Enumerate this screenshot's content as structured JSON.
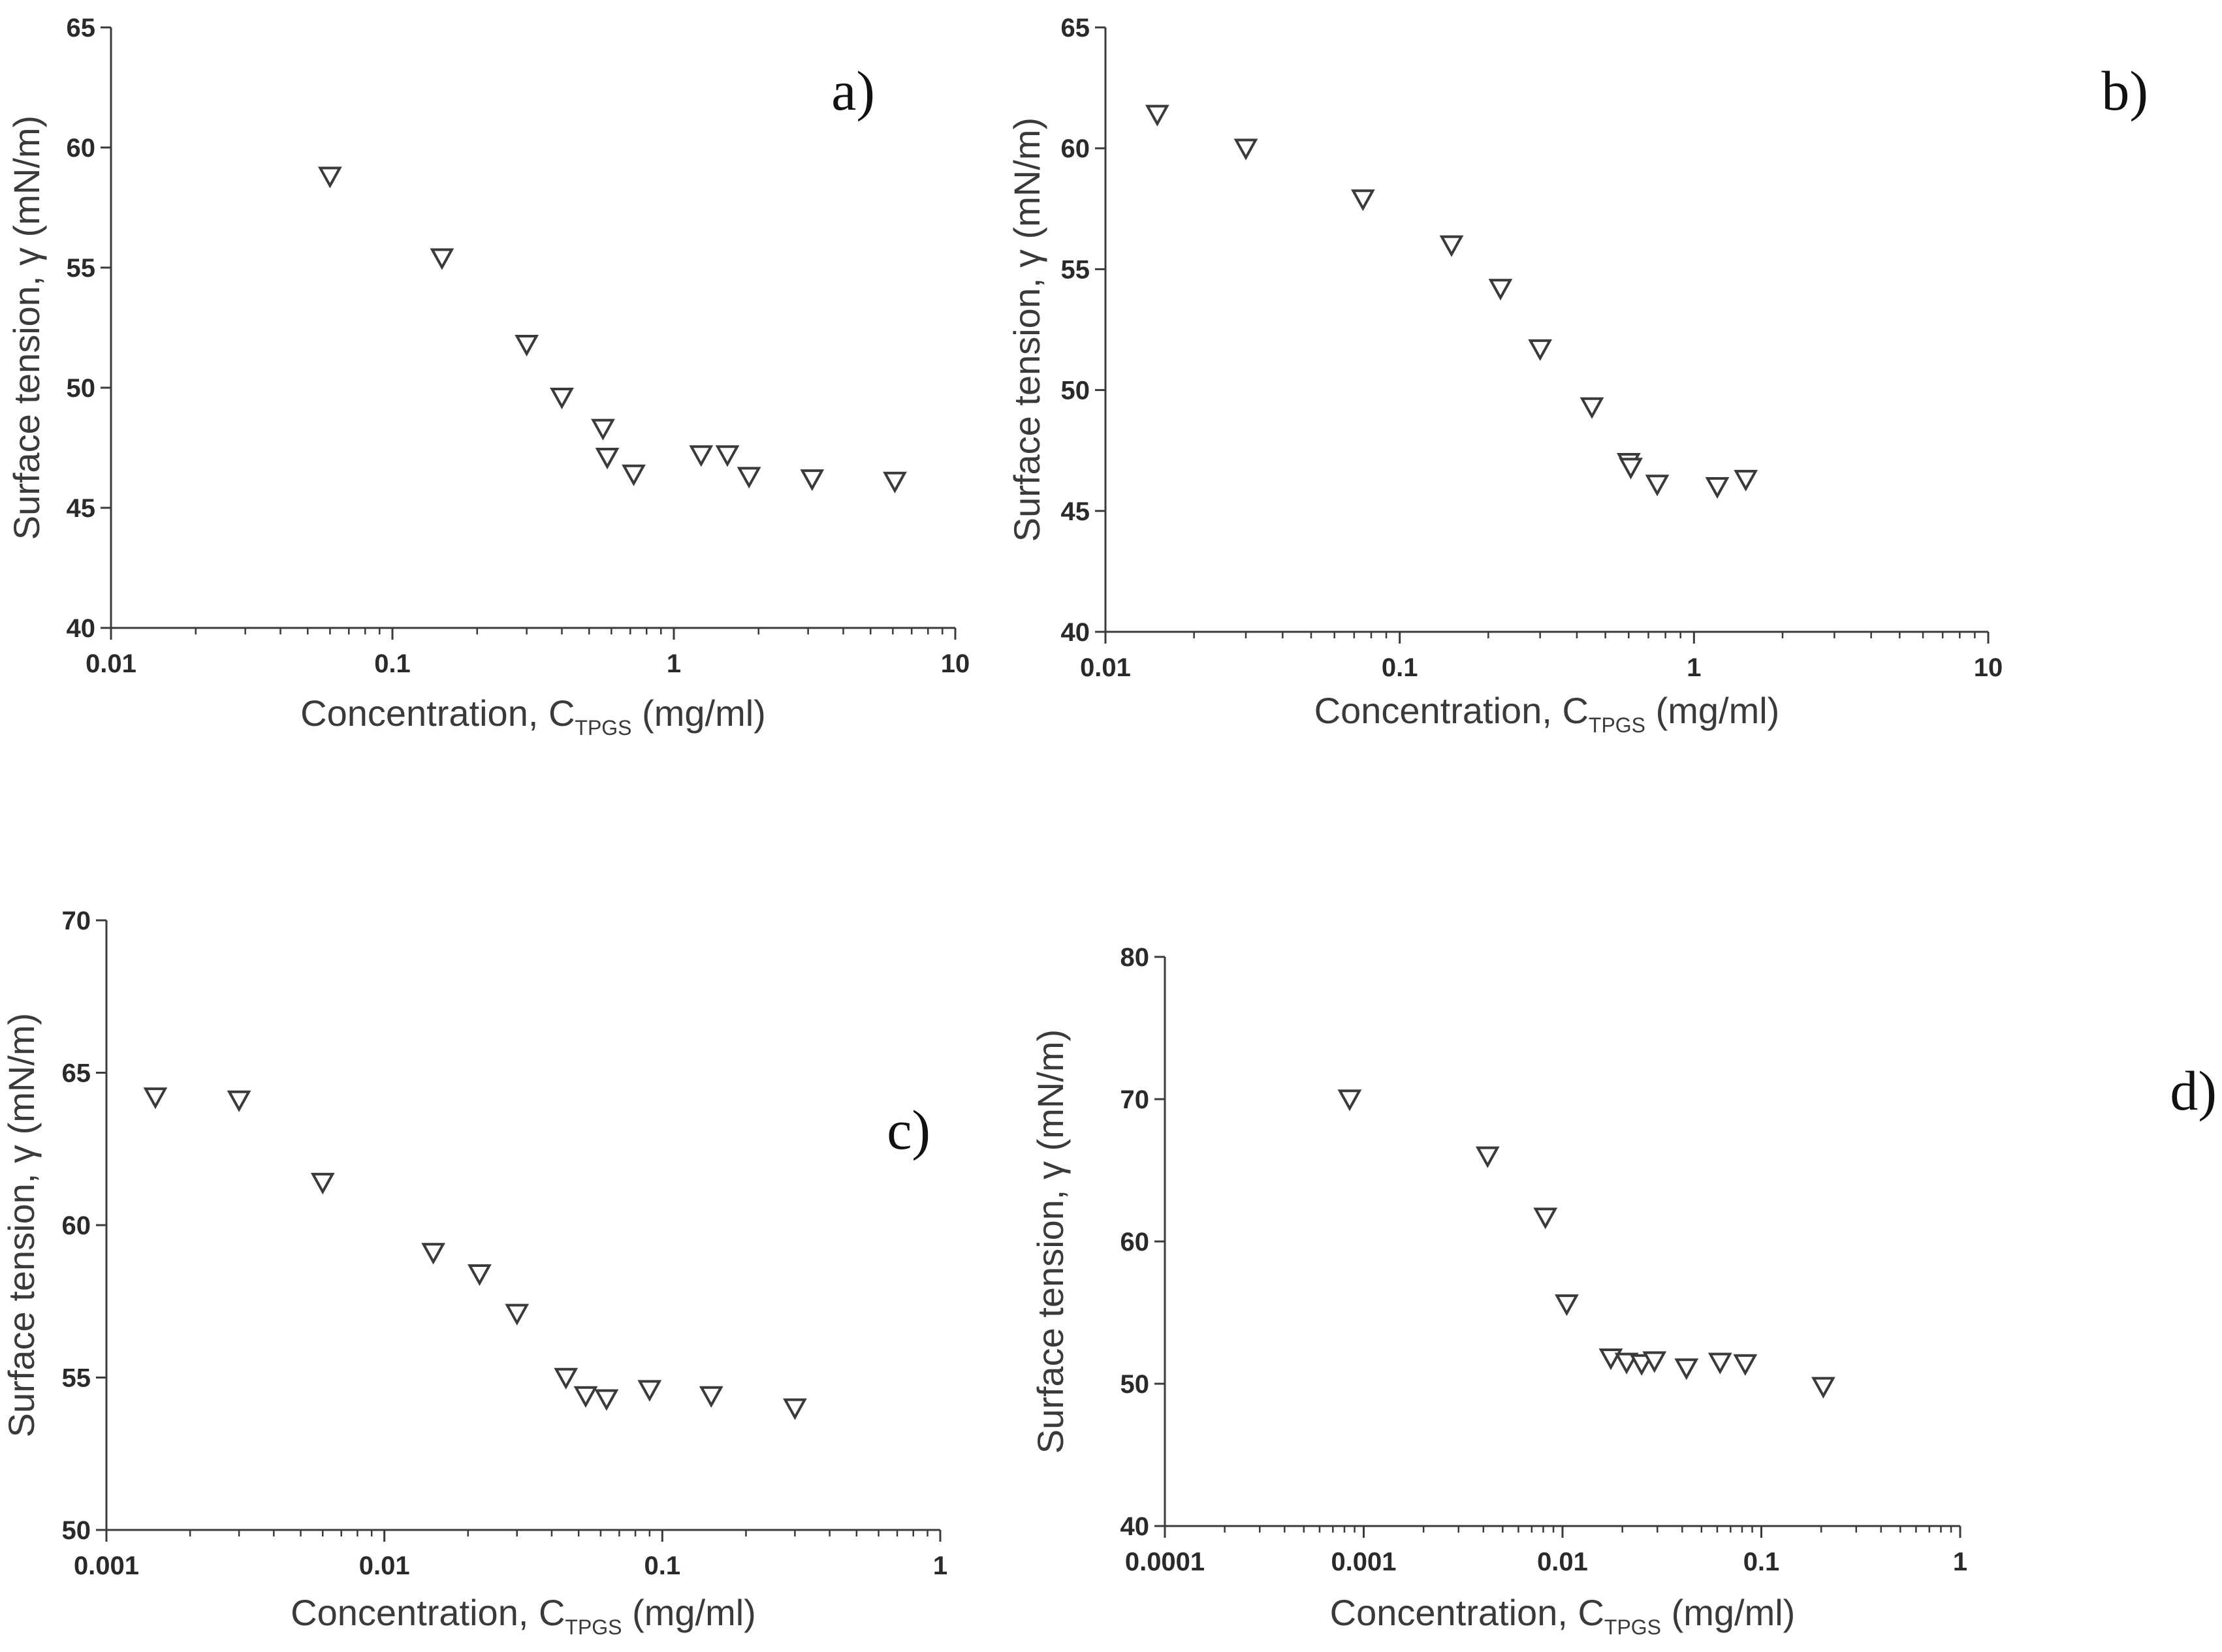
{
  "chart_data": [
    {
      "type": "scatter",
      "panel_label": "a)",
      "xlabel": "Concentration, C",
      "xlabel_sub": "TPGS",
      "xlabel_unit": " (mg/ml)",
      "ylabel": "Surface tension, γ (mN/m)",
      "x_scale": "log",
      "xlim": [
        0.01,
        10
      ],
      "ylim": [
        40,
        65
      ],
      "x_ticks": [
        0.01,
        0.1,
        1,
        10
      ],
      "x_tick_labels": [
        "0.01",
        "0.1",
        "1",
        "10"
      ],
      "y_ticks": [
        40,
        45,
        50,
        55,
        60,
        65
      ],
      "y_tick_labels": [
        "40",
        "45",
        "50",
        "55",
        "60",
        "65"
      ],
      "marker": "open-down-triangle",
      "x": [
        0.06,
        0.15,
        0.3,
        0.4,
        0.56,
        0.58,
        0.72,
        1.25,
        1.55,
        1.85,
        3.1,
        6.1
      ],
      "y": [
        58.8,
        55.4,
        51.8,
        49.6,
        48.3,
        47.1,
        46.4,
        47.2,
        47.2,
        46.3,
        46.2,
        46.1
      ]
    },
    {
      "type": "scatter",
      "panel_label": "b)",
      "xlabel": "Concentration, C",
      "xlabel_sub": "TPGS",
      "xlabel_unit": " (mg/ml)",
      "ylabel": "Surface tension, γ (mN/m)",
      "x_scale": "log",
      "xlim": [
        0.01,
        10
      ],
      "ylim": [
        40,
        65
      ],
      "x_ticks": [
        0.01,
        0.1,
        1,
        10
      ],
      "x_tick_labels": [
        "0.01",
        "0.1",
        "1",
        "10"
      ],
      "y_ticks": [
        40,
        45,
        50,
        55,
        60,
        65
      ],
      "y_tick_labels": [
        "40",
        "45",
        "50",
        "55",
        "60",
        "65"
      ],
      "marker": "open-down-triangle",
      "x": [
        0.015,
        0.03,
        0.075,
        0.15,
        0.22,
        0.3,
        0.45,
        0.6,
        0.61,
        0.75,
        1.2,
        1.5
      ],
      "y": [
        61.4,
        60.0,
        57.9,
        56.0,
        54.2,
        51.7,
        49.3,
        47.0,
        46.8,
        46.1,
        46.0,
        46.3
      ]
    },
    {
      "type": "scatter",
      "panel_label": "c)",
      "xlabel": "Concentration, C",
      "xlabel_sub": "TPGS",
      "xlabel_unit": " (mg/ml)",
      "ylabel": "Surface tension, γ (mN/m)",
      "x_scale": "log",
      "xlim": [
        0.001,
        1
      ],
      "ylim": [
        50,
        70
      ],
      "x_ticks": [
        0.001,
        0.01,
        0.1,
        1
      ],
      "x_tick_labels": [
        "0.001",
        "0.01",
        "0.1",
        "1"
      ],
      "y_ticks": [
        50,
        55,
        60,
        65,
        70
      ],
      "y_tick_labels": [
        "50",
        "55",
        "60",
        "65",
        "70"
      ],
      "marker": "open-down-triangle",
      "x": [
        0.0015,
        0.003,
        0.006,
        0.015,
        0.022,
        0.03,
        0.045,
        0.053,
        0.063,
        0.09,
        0.15,
        0.3
      ],
      "y": [
        64.2,
        64.1,
        61.4,
        59.1,
        58.4,
        57.1,
        55.0,
        54.4,
        54.3,
        54.6,
        54.4,
        54.0
      ]
    },
    {
      "type": "scatter",
      "panel_label": "d)",
      "xlabel": "Concentration, C",
      "xlabel_sub": "TPGS",
      "xlabel_unit": " (mg/ml)",
      "ylabel": "Surface tension, γ (mN/m)",
      "x_scale": "log",
      "xlim": [
        0.0001,
        1
      ],
      "ylim": [
        40,
        80
      ],
      "x_ticks": [
        0.0001,
        0.001,
        0.01,
        0.1,
        1
      ],
      "x_tick_labels": [
        "0.0001",
        "0.001",
        "0.01",
        "0.1",
        "1"
      ],
      "y_ticks": [
        40,
        50,
        60,
        70,
        80
      ],
      "y_tick_labels": [
        "40",
        "50",
        "60",
        "70",
        "80"
      ],
      "marker": "open-down-triangle",
      "x": [
        0.00085,
        0.0042,
        0.0082,
        0.0105,
        0.0175,
        0.021,
        0.025,
        0.029,
        0.042,
        0.062,
        0.083,
        0.205
      ],
      "y": [
        70.0,
        66.0,
        61.7,
        55.6,
        51.8,
        51.5,
        51.4,
        51.6,
        51.1,
        51.5,
        51.4,
        49.8
      ]
    }
  ]
}
